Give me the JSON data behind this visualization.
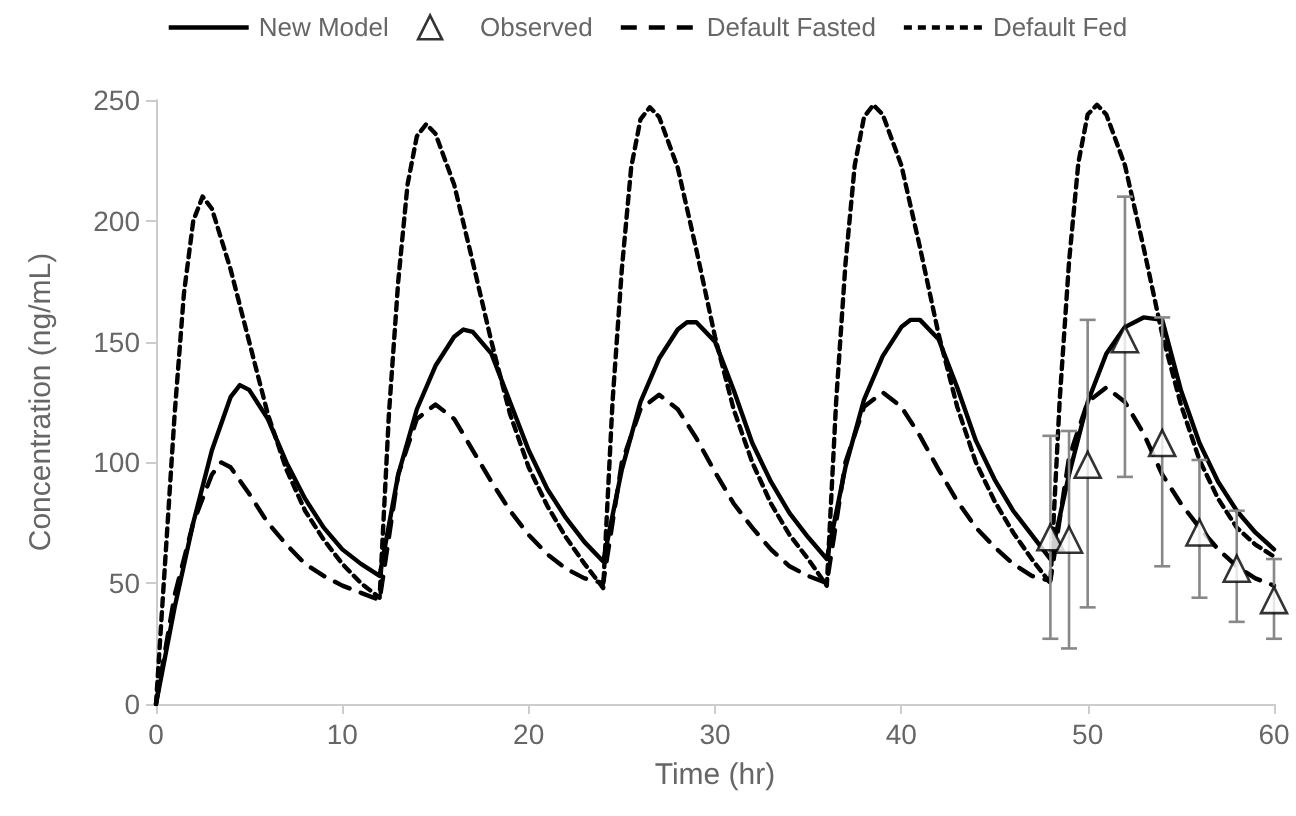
{
  "chart_data": {
    "type": "line",
    "xlabel": "Time (hr)",
    "ylabel": "Concentration (ng/mL)",
    "xlim": [
      0,
      60
    ],
    "xticks": [
      0,
      10,
      20,
      30,
      40,
      50,
      60
    ],
    "ylim": [
      0,
      250
    ],
    "yticks": [
      0,
      50,
      100,
      150,
      200,
      250
    ],
    "grid": false,
    "legend": "top",
    "series": [
      {
        "name": "New Model",
        "color": "#000000",
        "line_style": "solid",
        "x": [
          0,
          1,
          2,
          3,
          4,
          4.5,
          5,
          6,
          7,
          8,
          9,
          10,
          11,
          12,
          13,
          14,
          15,
          16,
          16.5,
          17,
          18,
          19,
          20,
          21,
          22,
          23,
          24,
          25,
          26,
          27,
          28,
          28.5,
          29,
          30,
          31,
          32,
          33,
          34,
          35,
          36,
          37,
          38,
          39,
          40,
          40.5,
          41,
          42,
          43,
          44,
          45,
          46,
          47,
          48,
          49,
          50,
          51,
          52,
          53,
          54,
          55,
          56,
          57,
          58,
          59,
          60
        ],
        "values": [
          0,
          40,
          75,
          105,
          127,
          132,
          130,
          118,
          100,
          85,
          73,
          64,
          58,
          53,
          95,
          122,
          140,
          152,
          155,
          154,
          145,
          125,
          105,
          89,
          77,
          67,
          59,
          97,
          125,
          143,
          155,
          158,
          158,
          150,
          130,
          108,
          92,
          79,
          69,
          60,
          98,
          126,
          144,
          156,
          159,
          159,
          151,
          131,
          109,
          93,
          80,
          70,
          60,
          95,
          125,
          145,
          156,
          160,
          159,
          130,
          108,
          92,
          80,
          71,
          64
        ]
      },
      {
        "name": "Observed",
        "type": "scatter",
        "color": "#000000",
        "marker": "triangle",
        "x": [
          48,
          49,
          50,
          52,
          54,
          56,
          58,
          60
        ],
        "values": [
          69,
          68,
          99,
          151,
          108,
          71,
          56,
          43
        ],
        "errors": [
          [
            27,
            111
          ],
          [
            23,
            113
          ],
          [
            40,
            159
          ],
          [
            94,
            210
          ],
          [
            57,
            160
          ],
          [
            44,
            101
          ],
          [
            34,
            80
          ],
          [
            27,
            60
          ]
        ]
      },
      {
        "name": "Default Fasted",
        "color": "#000000",
        "line_style": "dashed",
        "x": [
          0,
          1,
          2,
          3,
          3.5,
          4,
          5,
          6,
          7,
          8,
          9,
          10,
          11,
          12,
          13,
          14,
          15,
          16,
          17,
          18,
          19,
          20,
          21,
          22,
          23,
          24,
          25,
          26,
          27,
          28,
          29,
          30,
          31,
          32,
          33,
          34,
          35,
          36,
          37,
          38,
          39,
          40,
          41,
          42,
          43,
          44,
          45,
          46,
          47,
          48,
          49,
          50,
          51,
          52,
          53,
          54,
          55,
          56,
          57,
          58,
          59,
          60
        ],
        "values": [
          0,
          45,
          75,
          95,
          100,
          98,
          87,
          75,
          66,
          58,
          53,
          49,
          46,
          43,
          95,
          118,
          124,
          118,
          105,
          92,
          80,
          70,
          62,
          56,
          52,
          50,
          100,
          122,
          128,
          122,
          110,
          96,
          83,
          73,
          64,
          57,
          53,
          50,
          100,
          123,
          129,
          123,
          111,
          97,
          84,
          73,
          65,
          58,
          53,
          51,
          102,
          125,
          131,
          125,
          112,
          95,
          83,
          73,
          64,
          57,
          52,
          49
        ]
      },
      {
        "name": "Default Fed",
        "color": "#000000",
        "line_style": "dotted",
        "x": [
          0,
          0.5,
          1,
          1.5,
          2,
          2.5,
          3,
          4,
          5,
          6,
          7,
          8,
          9,
          10,
          11,
          12,
          12.5,
          13,
          13.5,
          14,
          14.5,
          15,
          16,
          17,
          18,
          19,
          20,
          21,
          22,
          23,
          24,
          24.5,
          25,
          25.5,
          26,
          26.5,
          27,
          28,
          29,
          30,
          31,
          32,
          33,
          34,
          35,
          36,
          36.5,
          37,
          37.5,
          38,
          38.5,
          39,
          40,
          41,
          42,
          43,
          44,
          45,
          46,
          47,
          48,
          48.5,
          49,
          49.5,
          50,
          50.5,
          51,
          52,
          53,
          54,
          55,
          56,
          57,
          58,
          59,
          60
        ],
        "values": [
          0,
          60,
          120,
          170,
          200,
          210,
          205,
          180,
          150,
          120,
          97,
          80,
          68,
          58,
          50,
          44,
          120,
          175,
          215,
          235,
          240,
          236,
          215,
          183,
          150,
          120,
          98,
          82,
          69,
          58,
          48,
          125,
          180,
          222,
          242,
          247,
          243,
          222,
          188,
          152,
          122,
          100,
          83,
          70,
          60,
          49,
          125,
          182,
          223,
          243,
          248,
          244,
          223,
          189,
          153,
          123,
          100,
          84,
          71,
          60,
          50,
          126,
          183,
          224,
          244,
          248,
          244,
          223,
          189,
          153,
          124,
          101,
          85,
          73,
          66,
          61
        ]
      }
    ]
  }
}
